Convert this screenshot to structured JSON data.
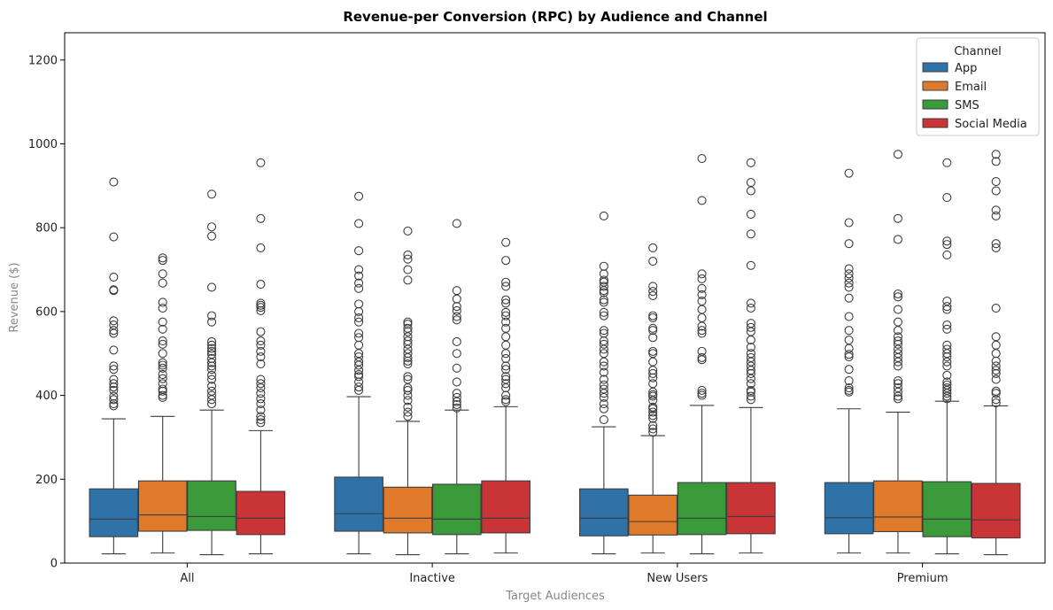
{
  "chart_data": {
    "type": "box",
    "title": "Revenue-per Conversion (RPC) by Audience and Channel",
    "xlabel": "Target Audiences",
    "ylabel": "Revenue ($)",
    "ylim": [
      0,
      1265
    ],
    "yticks": [
      0,
      200,
      400,
      600,
      800,
      1000,
      1200
    ],
    "categories": [
      "All",
      "Inactive",
      "New Users",
      "Premium"
    ],
    "legend": {
      "title": "Channel",
      "position": "top-right"
    },
    "series": [
      {
        "name": "App",
        "color": "#2f72a8",
        "boxes": [
          {
            "min": 22,
            "q1": 63,
            "median": 105,
            "q3": 177,
            "max": 344,
            "outliers": [
              375,
              380,
              390,
              398,
              412,
              420,
              428,
              438,
              462,
              470,
              508,
              548,
              555,
              568,
              578,
              650,
              652,
              682,
              778,
              909
            ]
          },
          {
            "min": 22,
            "q1": 76,
            "median": 118,
            "q3": 205,
            "max": 397,
            "outliers": [
              412,
              420,
              432,
              445,
              450,
              460,
              472,
              480,
              492,
              500,
              520,
              538,
              548,
              575,
              585,
              600,
              618,
              655,
              668,
              685,
              700,
              745,
              810,
              875
            ]
          },
          {
            "min": 22,
            "q1": 65,
            "median": 107,
            "q3": 177,
            "max": 325,
            "outliers": [
              342,
              368,
              380,
              395,
              405,
              415,
              425,
              438,
              455,
              470,
              480,
              500,
              510,
              522,
              530,
              548,
              555,
              590,
              598,
              622,
              628,
              645,
              650,
              660,
              670,
              675,
              690,
              708,
              828
            ]
          },
          {
            "min": 24,
            "q1": 70,
            "median": 108,
            "q3": 192,
            "max": 368,
            "outliers": [
              408,
              412,
              418,
              435,
              462,
              492,
              498,
              512,
              532,
              555,
              588,
              632,
              658,
              668,
              680,
              690,
              702,
              762,
              812,
              930
            ]
          }
        ]
      },
      {
        "name": "Email",
        "color": "#e07a2b",
        "boxes": [
          {
            "min": 24,
            "q1": 76,
            "median": 115,
            "q3": 196,
            "max": 350,
            "outliers": [
              395,
              400,
              410,
              415,
              428,
              440,
              450,
              465,
              472,
              478,
              500,
              522,
              530,
              558,
              575,
              608,
              622,
              668,
              690,
              722,
              728
            ]
          },
          {
            "min": 20,
            "q1": 72,
            "median": 107,
            "q3": 181,
            "max": 338,
            "outliers": [
              350,
              360,
              372,
              388,
              400,
              412,
              418,
              438,
              445,
              475,
              482,
              490,
              500,
              510,
              522,
              530,
              540,
              552,
              560,
              570,
              575,
              675,
              700,
              725,
              735,
              792
            ]
          },
          {
            "min": 24,
            "q1": 67,
            "median": 99,
            "q3": 162,
            "max": 304,
            "outliers": [
              312,
              320,
              328,
              345,
              352,
              360,
              368,
              372,
              388,
              398,
              402,
              408,
              428,
              442,
              452,
              460,
              480,
              500,
              505,
              538,
              555,
              560,
              585,
              590,
              638,
              648,
              660,
              720,
              752
            ]
          },
          {
            "min": 24,
            "q1": 75,
            "median": 110,
            "q3": 196,
            "max": 360,
            "outliers": [
              392,
              398,
              408,
              418,
              428,
              435,
              470,
              480,
              490,
              500,
              510,
              522,
              530,
              540,
              555,
              575,
              605,
              635,
              642,
              772,
              822,
              975
            ]
          }
        ]
      },
      {
        "name": "SMS",
        "color": "#3a9a3a",
        "boxes": [
          {
            "min": 20,
            "q1": 78,
            "median": 111,
            "q3": 196,
            "max": 365,
            "outliers": [
              380,
              390,
              400,
              410,
              422,
              438,
              448,
              462,
              470,
              478,
              488,
              498,
              505,
              512,
              520,
              528,
              575,
              590,
              658,
              780,
              802,
              880
            ]
          },
          {
            "min": 22,
            "q1": 68,
            "median": 105,
            "q3": 188,
            "max": 365,
            "outliers": [
              370,
              378,
              385,
              395,
              405,
              432,
              465,
              500,
              528,
              580,
              588,
              602,
              612,
              630,
              650,
              810
            ]
          },
          {
            "min": 22,
            "q1": 68,
            "median": 107,
            "q3": 192,
            "max": 376,
            "outliers": [
              400,
              405,
              412,
              485,
              490,
              505,
              548,
              555,
              565,
              585,
              605,
              625,
              640,
              655,
              678,
              690,
              865,
              965
            ]
          },
          {
            "min": 22,
            "q1": 63,
            "median": 105,
            "q3": 194,
            "max": 386,
            "outliers": [
              392,
              398,
              405,
              412,
              418,
              425,
              432,
              448,
              470,
              480,
              492,
              500,
              510,
              520,
              558,
              568,
              605,
              612,
              625,
              735,
              760,
              768,
              872,
              955
            ]
          }
        ]
      },
      {
        "name": "Social Media",
        "color": "#c93537",
        "boxes": [
          {
            "min": 22,
            "q1": 68,
            "median": 107,
            "q3": 171,
            "max": 316,
            "outliers": [
              335,
              342,
              350,
              365,
              380,
              392,
              405,
              418,
              428,
              438,
              475,
              492,
              505,
              520,
              530,
              552,
              602,
              610,
              615,
              620,
              665,
              752,
              822,
              955
            ]
          },
          {
            "min": 24,
            "q1": 72,
            "median": 107,
            "q3": 196,
            "max": 373,
            "outliers": [
              385,
              390,
              400,
              418,
              428,
              438,
              445,
              462,
              470,
              488,
              500,
              520,
              540,
              560,
              575,
              590,
              598,
              620,
              628,
              660,
              670,
              722,
              765
            ]
          },
          {
            "min": 24,
            "q1": 70,
            "median": 111,
            "q3": 192,
            "max": 371,
            "outliers": [
              390,
              398,
              408,
              412,
              428,
              440,
              452,
              460,
              470,
              480,
              490,
              500,
              515,
              532,
              552,
              562,
              572,
              608,
              620,
              710,
              785,
              832,
              888,
              908,
              955
            ]
          },
          {
            "min": 20,
            "q1": 60,
            "median": 103,
            "q3": 190,
            "max": 375,
            "outliers": [
              382,
              390,
              405,
              410,
              438,
              452,
              460,
              470,
              482,
              500,
              520,
              540,
              608,
              752,
              762,
              828,
              842,
              888,
              910,
              958,
              975
            ]
          }
        ]
      }
    ]
  }
}
